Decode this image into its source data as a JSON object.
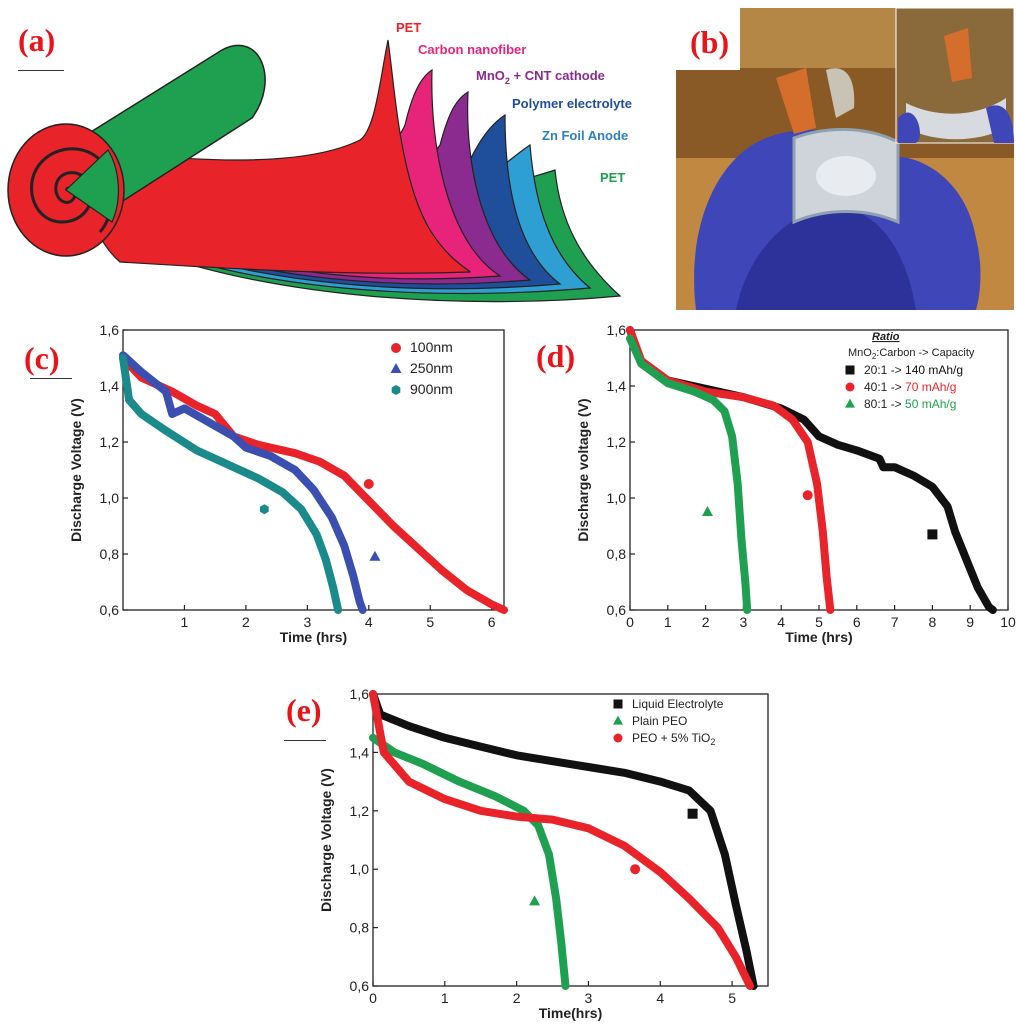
{
  "panel_a": {
    "label": "(a)",
    "layers": [
      {
        "name": "PET",
        "color": "#e8232a"
      },
      {
        "name": "Carbon nanofiber",
        "color": "#e8237a"
      },
      {
        "name": "MnO2 + CNT cathode",
        "color": "#8b2a8f"
      },
      {
        "name": "Polymer electrolyte",
        "color": "#1f4f9a"
      },
      {
        "name": "Zn Foil Anode",
        "color": "#2d7fc0"
      },
      {
        "name": "PET",
        "color": "#1fa050"
      }
    ],
    "labels": {
      "l1": "PET",
      "l2": "Carbon nanofiber",
      "l3a": "MnO",
      "l3sub": "2",
      "l3b": " + CNT cathode",
      "l4": "Polymer electrolyte",
      "l5": "Zn Foil Anode",
      "l6": "PET"
    }
  },
  "panel_b": {
    "label": "(b)"
  },
  "panel_c": {
    "label": "(c)"
  },
  "panel_d": {
    "label": "(d)"
  },
  "panel_e": {
    "label": "(e)"
  },
  "chart_data": [
    {
      "id": "c",
      "type": "line",
      "xlabel": "Time (hrs)",
      "ylabel": "Discharge Voltage (V)",
      "xlim": [
        0,
        6.2
      ],
      "ylim": [
        0.6,
        1.6
      ],
      "xticks": [
        1,
        2,
        3,
        4,
        5,
        6
      ],
      "yticks": [
        0.6,
        0.8,
        1.0,
        1.2,
        1.4,
        1.6
      ],
      "ytick_labels": [
        "0,6",
        "0,8",
        "1,0",
        "1,2",
        "1,4",
        "1,6"
      ],
      "legend_position": "top-right",
      "series": [
        {
          "name": "100nm",
          "color": "#e8232a",
          "marker": "circle",
          "points": [
            [
              0,
              1.5
            ],
            [
              0.3,
              1.43
            ],
            [
              0.8,
              1.38
            ],
            [
              1.2,
              1.33
            ],
            [
              1.5,
              1.3
            ],
            [
              1.8,
              1.22
            ],
            [
              2.2,
              1.19
            ],
            [
              2.8,
              1.16
            ],
            [
              3.2,
              1.13
            ],
            [
              3.6,
              1.08
            ],
            [
              4.0,
              0.99
            ],
            [
              4.4,
              0.9
            ],
            [
              4.8,
              0.82
            ],
            [
              5.2,
              0.74
            ],
            [
              5.6,
              0.67
            ],
            [
              6.0,
              0.62
            ],
            [
              6.2,
              0.6
            ]
          ],
          "marker_point": [
            4.0,
            1.05
          ]
        },
        {
          "name": "250nm",
          "color": "#3a4fb0",
          "marker": "triangle",
          "points": [
            [
              0,
              1.51
            ],
            [
              0.3,
              1.45
            ],
            [
              0.7,
              1.38
            ],
            [
              0.8,
              1.3
            ],
            [
              1.0,
              1.32
            ],
            [
              1.4,
              1.27
            ],
            [
              1.8,
              1.22
            ],
            [
              2.0,
              1.18
            ],
            [
              2.4,
              1.15
            ],
            [
              2.8,
              1.1
            ],
            [
              3.1,
              1.03
            ],
            [
              3.4,
              0.93
            ],
            [
              3.6,
              0.83
            ],
            [
              3.75,
              0.72
            ],
            [
              3.85,
              0.63
            ],
            [
              3.9,
              0.6
            ]
          ],
          "marker_point": [
            4.1,
            0.79
          ]
        },
        {
          "name": "900nm",
          "color": "#1a8a8a",
          "marker": "hexagon",
          "points": [
            [
              0,
              1.5
            ],
            [
              0.1,
              1.35
            ],
            [
              0.3,
              1.3
            ],
            [
              0.7,
              1.24
            ],
            [
              1.2,
              1.17
            ],
            [
              1.7,
              1.12
            ],
            [
              2.2,
              1.07
            ],
            [
              2.6,
              1.02
            ],
            [
              2.9,
              0.96
            ],
            [
              3.15,
              0.87
            ],
            [
              3.3,
              0.78
            ],
            [
              3.42,
              0.68
            ],
            [
              3.5,
              0.6
            ]
          ],
          "marker_point": [
            2.3,
            0.96
          ]
        }
      ]
    },
    {
      "id": "d",
      "type": "line",
      "xlabel": "Time (hrs)",
      "ylabel": "Discharge voltage (V)",
      "xlim": [
        0,
        10
      ],
      "ylim": [
        0.6,
        1.6
      ],
      "xticks": [
        0,
        1,
        2,
        3,
        4,
        5,
        6,
        7,
        8,
        9,
        10
      ],
      "yticks": [
        0.6,
        0.8,
        1.0,
        1.2,
        1.4,
        1.6
      ],
      "ytick_labels": [
        "0,6",
        "0,8",
        "1,0",
        "1,2",
        "1,4",
        "1,6"
      ],
      "legend_title": "Ratio",
      "legend_subtitle_a": "MnO",
      "legend_subtitle_sub": "2",
      "legend_subtitle_b": ":Carbon -> Capacity",
      "legend_position": "top-right",
      "series": [
        {
          "name": "20:1 -> 140 mAh/g",
          "name_prefix": "20:1 -> ",
          "name_value": "140 mAh/g",
          "color": "#111111",
          "label_color": "#111111",
          "marker": "square",
          "points": [
            [
              0,
              1.6
            ],
            [
              0.3,
              1.48
            ],
            [
              1,
              1.42
            ],
            [
              2,
              1.39
            ],
            [
              3,
              1.36
            ],
            [
              4,
              1.32
            ],
            [
              4.6,
              1.28
            ],
            [
              5.0,
              1.22
            ],
            [
              5.5,
              1.19
            ],
            [
              6,
              1.17
            ],
            [
              6.6,
              1.14
            ],
            [
              6.7,
              1.11
            ],
            [
              7,
              1.11
            ],
            [
              7.5,
              1.08
            ],
            [
              8,
              1.04
            ],
            [
              8.4,
              0.97
            ],
            [
              8.6,
              0.88
            ],
            [
              8.9,
              0.78
            ],
            [
              9.2,
              0.68
            ],
            [
              9.5,
              0.61
            ],
            [
              9.6,
              0.6
            ]
          ],
          "marker_point": [
            8.0,
            0.87
          ]
        },
        {
          "name": "40:1 -> 70 mAh/g",
          "name_prefix": "40:1 -> ",
          "name_value": "70 mAh/g",
          "color": "#e8232a",
          "label_color": "#e8232a",
          "marker": "circle",
          "points": [
            [
              0,
              1.6
            ],
            [
              0.3,
              1.49
            ],
            [
              1,
              1.42
            ],
            [
              2,
              1.38
            ],
            [
              3,
              1.36
            ],
            [
              3.8,
              1.33
            ],
            [
              4.3,
              1.28
            ],
            [
              4.7,
              1.2
            ],
            [
              4.95,
              1.05
            ],
            [
              5.1,
              0.88
            ],
            [
              5.2,
              0.72
            ],
            [
              5.3,
              0.6
            ]
          ],
          "marker_point": [
            4.7,
            1.01
          ]
        },
        {
          "name": "80:1 -> 50 mAh/g",
          "name_prefix": "80:1 -> ",
          "name_value": "50 mAh/g",
          "color": "#1fa050",
          "label_color": "#1fa050",
          "marker": "triangle",
          "points": [
            [
              0,
              1.57
            ],
            [
              0.3,
              1.48
            ],
            [
              1,
              1.41
            ],
            [
              1.7,
              1.38
            ],
            [
              2.2,
              1.35
            ],
            [
              2.5,
              1.31
            ],
            [
              2.7,
              1.22
            ],
            [
              2.85,
              1.05
            ],
            [
              2.95,
              0.85
            ],
            [
              3.05,
              0.7
            ],
            [
              3.1,
              0.6
            ]
          ],
          "marker_point": [
            2.05,
            0.95
          ]
        }
      ]
    },
    {
      "id": "e",
      "type": "line",
      "xlabel": "Time(hrs)",
      "ylabel": "Discharge Voltage (V)",
      "xlim": [
        0,
        5.5
      ],
      "ylim": [
        0.6,
        1.6
      ],
      "xticks": [
        0,
        1,
        2,
        3,
        4,
        5
      ],
      "yticks": [
        0.6,
        0.8,
        1.0,
        1.2,
        1.4,
        1.6
      ],
      "ytick_labels": [
        "0,6",
        "0,8",
        "1,0",
        "1,2",
        "1,4",
        "1,6"
      ],
      "legend_position": "top-right",
      "series": [
        {
          "name": "Liquid Electrolyte",
          "color": "#111111",
          "marker": "square",
          "points": [
            [
              0,
              1.6
            ],
            [
              0.1,
              1.53
            ],
            [
              0.5,
              1.49
            ],
            [
              1,
              1.45
            ],
            [
              1.5,
              1.42
            ],
            [
              2,
              1.39
            ],
            [
              2.5,
              1.37
            ],
            [
              3,
              1.35
            ],
            [
              3.5,
              1.33
            ],
            [
              4,
              1.3
            ],
            [
              4.4,
              1.27
            ],
            [
              4.7,
              1.2
            ],
            [
              4.9,
              1.05
            ],
            [
              5.05,
              0.88
            ],
            [
              5.2,
              0.72
            ],
            [
              5.3,
              0.6
            ]
          ],
          "marker_point": [
            4.45,
            1.19
          ]
        },
        {
          "name": "Plain PEO",
          "color": "#1fa050",
          "marker": "triangle",
          "points": [
            [
              0,
              1.45
            ],
            [
              0.3,
              1.4
            ],
            [
              0.7,
              1.36
            ],
            [
              1.2,
              1.3
            ],
            [
              1.7,
              1.25
            ],
            [
              2.1,
              1.2
            ],
            [
              2.3,
              1.15
            ],
            [
              2.45,
              1.05
            ],
            [
              2.55,
              0.9
            ],
            [
              2.62,
              0.75
            ],
            [
              2.68,
              0.6
            ]
          ],
          "marker_point": [
            2.25,
            0.89
          ]
        },
        {
          "name": "PEO + 5% TiO2",
          "name_a": "PEO + 5% TiO",
          "name_sub": "2",
          "color": "#e8232a",
          "marker": "circle",
          "points": [
            [
              0,
              1.6
            ],
            [
              0.15,
              1.4
            ],
            [
              0.5,
              1.3
            ],
            [
              1,
              1.24
            ],
            [
              1.5,
              1.2
            ],
            [
              2,
              1.18
            ],
            [
              2.5,
              1.17
            ],
            [
              3,
              1.14
            ],
            [
              3.5,
              1.08
            ],
            [
              4,
              0.99
            ],
            [
              4.4,
              0.9
            ],
            [
              4.8,
              0.8
            ],
            [
              5.05,
              0.7
            ],
            [
              5.25,
              0.6
            ]
          ],
          "marker_point": [
            3.65,
            1.0
          ]
        }
      ]
    }
  ]
}
